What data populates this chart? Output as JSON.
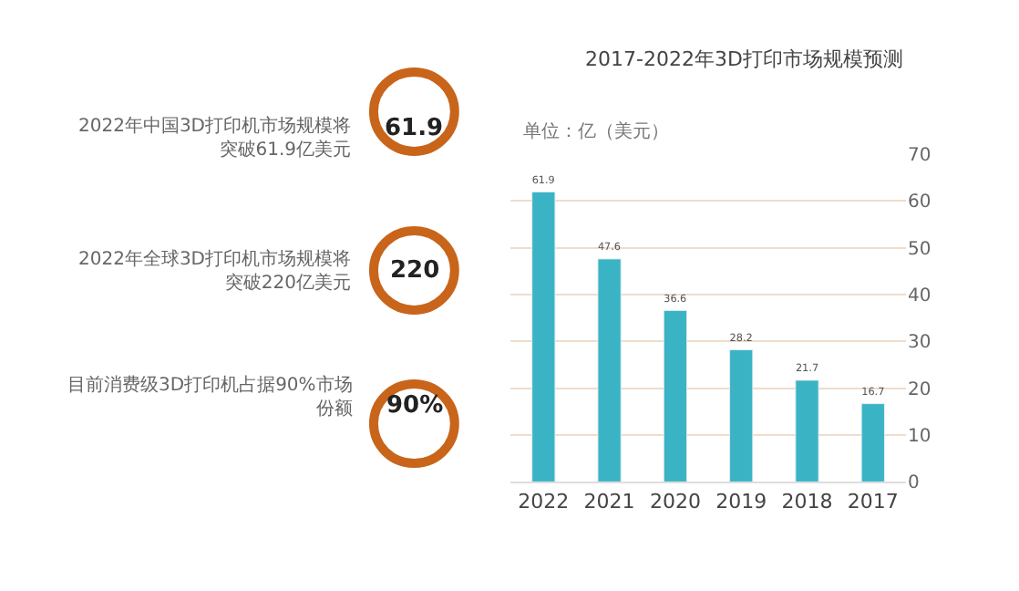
{
  "chart_data": [
    {
      "type": "other",
      "color": "#c8651b",
      "annotations": [
        "61.9",
        "2022年中国3D打印机市场规模将突破61.9亿美元",
        "220",
        "2022年全球3D打印机市场规模将突破220亿美元",
        "90%",
        "目前消费级3D打印机占据90%市场份额"
      ]
    },
    {
      "type": "bar",
      "title": "2017-2022年3D打印市场规模预测",
      "ylabel": "单位：亿（美元）",
      "categories": [
        "2022",
        "2021",
        "2020",
        "2019",
        "2018",
        "2017"
      ],
      "values": [
        61.9,
        47.6,
        36.6,
        28.2,
        21.7,
        16.7
      ],
      "color": "#3ab4c4",
      "ylim": [
        0,
        70
      ],
      "yticks": [
        0,
        10,
        20,
        30,
        40,
        50,
        60,
        70
      ],
      "grid": "y",
      "data_labels": true
    }
  ]
}
